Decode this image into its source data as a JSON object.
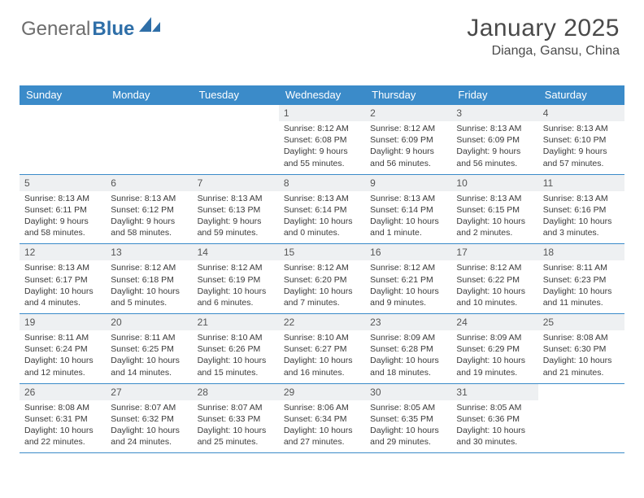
{
  "logo": {
    "text1": "General",
    "text2": "Blue"
  },
  "header": {
    "month_title": "January 2025",
    "location": "Dianga, Gansu, China"
  },
  "colors": {
    "header_bar": "#3b8bc9",
    "daynum_bg": "#eef0f2",
    "text": "#3a3a3a",
    "logo_gray": "#6d6d6d",
    "logo_blue": "#2f6fa8"
  },
  "day_names": [
    "Sunday",
    "Monday",
    "Tuesday",
    "Wednesday",
    "Thursday",
    "Friday",
    "Saturday"
  ],
  "weeks": [
    [
      {
        "day": "",
        "sunrise": "",
        "sunset": "",
        "daylight1": "",
        "daylight2": ""
      },
      {
        "day": "",
        "sunrise": "",
        "sunset": "",
        "daylight1": "",
        "daylight2": ""
      },
      {
        "day": "",
        "sunrise": "",
        "sunset": "",
        "daylight1": "",
        "daylight2": ""
      },
      {
        "day": "1",
        "sunrise": "Sunrise: 8:12 AM",
        "sunset": "Sunset: 6:08 PM",
        "daylight1": "Daylight: 9 hours",
        "daylight2": "and 55 minutes."
      },
      {
        "day": "2",
        "sunrise": "Sunrise: 8:12 AM",
        "sunset": "Sunset: 6:09 PM",
        "daylight1": "Daylight: 9 hours",
        "daylight2": "and 56 minutes."
      },
      {
        "day": "3",
        "sunrise": "Sunrise: 8:13 AM",
        "sunset": "Sunset: 6:09 PM",
        "daylight1": "Daylight: 9 hours",
        "daylight2": "and 56 minutes."
      },
      {
        "day": "4",
        "sunrise": "Sunrise: 8:13 AM",
        "sunset": "Sunset: 6:10 PM",
        "daylight1": "Daylight: 9 hours",
        "daylight2": "and 57 minutes."
      }
    ],
    [
      {
        "day": "5",
        "sunrise": "Sunrise: 8:13 AM",
        "sunset": "Sunset: 6:11 PM",
        "daylight1": "Daylight: 9 hours",
        "daylight2": "and 58 minutes."
      },
      {
        "day": "6",
        "sunrise": "Sunrise: 8:13 AM",
        "sunset": "Sunset: 6:12 PM",
        "daylight1": "Daylight: 9 hours",
        "daylight2": "and 58 minutes."
      },
      {
        "day": "7",
        "sunrise": "Sunrise: 8:13 AM",
        "sunset": "Sunset: 6:13 PM",
        "daylight1": "Daylight: 9 hours",
        "daylight2": "and 59 minutes."
      },
      {
        "day": "8",
        "sunrise": "Sunrise: 8:13 AM",
        "sunset": "Sunset: 6:14 PM",
        "daylight1": "Daylight: 10 hours",
        "daylight2": "and 0 minutes."
      },
      {
        "day": "9",
        "sunrise": "Sunrise: 8:13 AM",
        "sunset": "Sunset: 6:14 PM",
        "daylight1": "Daylight: 10 hours",
        "daylight2": "and 1 minute."
      },
      {
        "day": "10",
        "sunrise": "Sunrise: 8:13 AM",
        "sunset": "Sunset: 6:15 PM",
        "daylight1": "Daylight: 10 hours",
        "daylight2": "and 2 minutes."
      },
      {
        "day": "11",
        "sunrise": "Sunrise: 8:13 AM",
        "sunset": "Sunset: 6:16 PM",
        "daylight1": "Daylight: 10 hours",
        "daylight2": "and 3 minutes."
      }
    ],
    [
      {
        "day": "12",
        "sunrise": "Sunrise: 8:13 AM",
        "sunset": "Sunset: 6:17 PM",
        "daylight1": "Daylight: 10 hours",
        "daylight2": "and 4 minutes."
      },
      {
        "day": "13",
        "sunrise": "Sunrise: 8:12 AM",
        "sunset": "Sunset: 6:18 PM",
        "daylight1": "Daylight: 10 hours",
        "daylight2": "and 5 minutes."
      },
      {
        "day": "14",
        "sunrise": "Sunrise: 8:12 AM",
        "sunset": "Sunset: 6:19 PM",
        "daylight1": "Daylight: 10 hours",
        "daylight2": "and 6 minutes."
      },
      {
        "day": "15",
        "sunrise": "Sunrise: 8:12 AM",
        "sunset": "Sunset: 6:20 PM",
        "daylight1": "Daylight: 10 hours",
        "daylight2": "and 7 minutes."
      },
      {
        "day": "16",
        "sunrise": "Sunrise: 8:12 AM",
        "sunset": "Sunset: 6:21 PM",
        "daylight1": "Daylight: 10 hours",
        "daylight2": "and 9 minutes."
      },
      {
        "day": "17",
        "sunrise": "Sunrise: 8:12 AM",
        "sunset": "Sunset: 6:22 PM",
        "daylight1": "Daylight: 10 hours",
        "daylight2": "and 10 minutes."
      },
      {
        "day": "18",
        "sunrise": "Sunrise: 8:11 AM",
        "sunset": "Sunset: 6:23 PM",
        "daylight1": "Daylight: 10 hours",
        "daylight2": "and 11 minutes."
      }
    ],
    [
      {
        "day": "19",
        "sunrise": "Sunrise: 8:11 AM",
        "sunset": "Sunset: 6:24 PM",
        "daylight1": "Daylight: 10 hours",
        "daylight2": "and 12 minutes."
      },
      {
        "day": "20",
        "sunrise": "Sunrise: 8:11 AM",
        "sunset": "Sunset: 6:25 PM",
        "daylight1": "Daylight: 10 hours",
        "daylight2": "and 14 minutes."
      },
      {
        "day": "21",
        "sunrise": "Sunrise: 8:10 AM",
        "sunset": "Sunset: 6:26 PM",
        "daylight1": "Daylight: 10 hours",
        "daylight2": "and 15 minutes."
      },
      {
        "day": "22",
        "sunrise": "Sunrise: 8:10 AM",
        "sunset": "Sunset: 6:27 PM",
        "daylight1": "Daylight: 10 hours",
        "daylight2": "and 16 minutes."
      },
      {
        "day": "23",
        "sunrise": "Sunrise: 8:09 AM",
        "sunset": "Sunset: 6:28 PM",
        "daylight1": "Daylight: 10 hours",
        "daylight2": "and 18 minutes."
      },
      {
        "day": "24",
        "sunrise": "Sunrise: 8:09 AM",
        "sunset": "Sunset: 6:29 PM",
        "daylight1": "Daylight: 10 hours",
        "daylight2": "and 19 minutes."
      },
      {
        "day": "25",
        "sunrise": "Sunrise: 8:08 AM",
        "sunset": "Sunset: 6:30 PM",
        "daylight1": "Daylight: 10 hours",
        "daylight2": "and 21 minutes."
      }
    ],
    [
      {
        "day": "26",
        "sunrise": "Sunrise: 8:08 AM",
        "sunset": "Sunset: 6:31 PM",
        "daylight1": "Daylight: 10 hours",
        "daylight2": "and 22 minutes."
      },
      {
        "day": "27",
        "sunrise": "Sunrise: 8:07 AM",
        "sunset": "Sunset: 6:32 PM",
        "daylight1": "Daylight: 10 hours",
        "daylight2": "and 24 minutes."
      },
      {
        "day": "28",
        "sunrise": "Sunrise: 8:07 AM",
        "sunset": "Sunset: 6:33 PM",
        "daylight1": "Daylight: 10 hours",
        "daylight2": "and 25 minutes."
      },
      {
        "day": "29",
        "sunrise": "Sunrise: 8:06 AM",
        "sunset": "Sunset: 6:34 PM",
        "daylight1": "Daylight: 10 hours",
        "daylight2": "and 27 minutes."
      },
      {
        "day": "30",
        "sunrise": "Sunrise: 8:05 AM",
        "sunset": "Sunset: 6:35 PM",
        "daylight1": "Daylight: 10 hours",
        "daylight2": "and 29 minutes."
      },
      {
        "day": "31",
        "sunrise": "Sunrise: 8:05 AM",
        "sunset": "Sunset: 6:36 PM",
        "daylight1": "Daylight: 10 hours",
        "daylight2": "and 30 minutes."
      },
      {
        "day": "",
        "sunrise": "",
        "sunset": "",
        "daylight1": "",
        "daylight2": ""
      }
    ]
  ]
}
